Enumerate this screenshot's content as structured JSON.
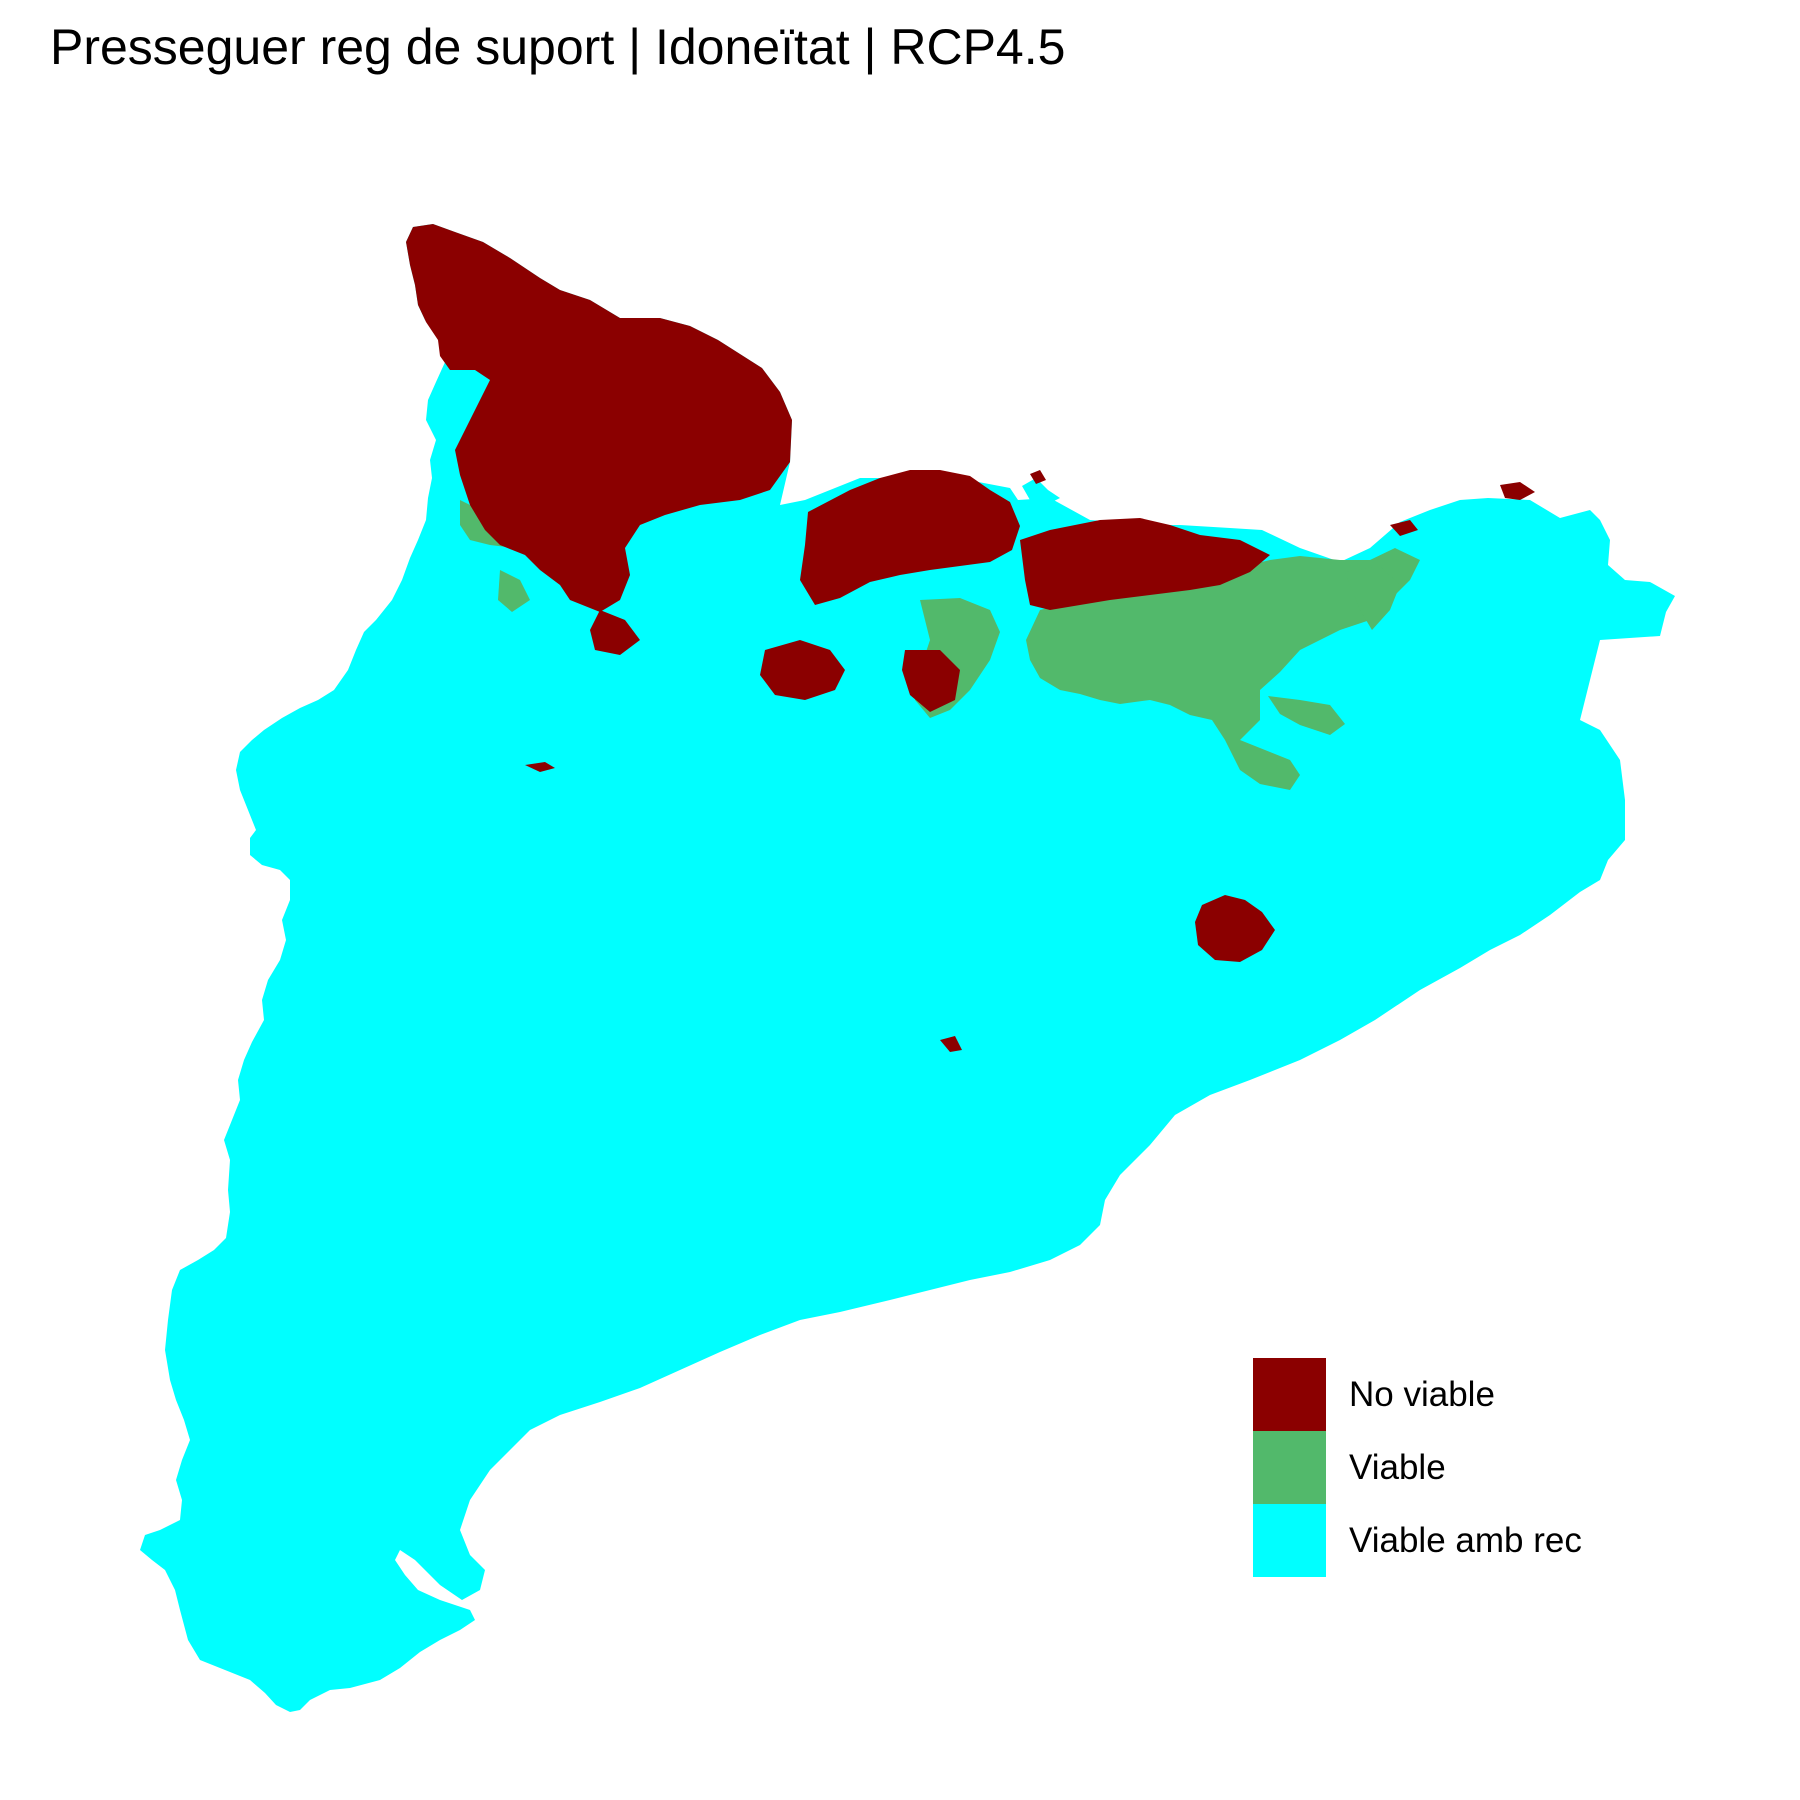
{
  "title": "Presseguer reg de suport | Idoneïtat | RCP4.5",
  "legend": [
    {
      "label": "No viable",
      "color": "#8b0000"
    },
    {
      "label": "Viable",
      "color": "#52b96b"
    },
    {
      "label": "Viable amb rec",
      "color": "#00ffff"
    }
  ],
  "map": {
    "region_colors": {
      "no_viable": "#8b0000",
      "viable": "#52b96b",
      "viable_amb_rec": "#00ffff"
    }
  }
}
